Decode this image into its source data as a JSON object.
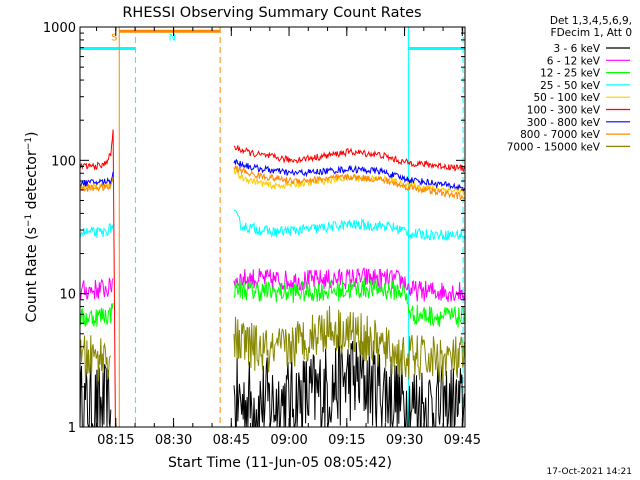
{
  "chart_data": {
    "type": "line",
    "title": "RHESSI Observing Summary Count Rates",
    "xlabel": "Start Time (11-Jun-05 08:05:42)",
    "ylabel": "Count Rate (s⁻¹ detector⁻¹)",
    "yscale": "log",
    "ylim": [
      1,
      1000
    ],
    "xlim_minutes": [
      0,
      100
    ],
    "x_ticks": [
      {
        "label": "08:15",
        "t": 9.3
      },
      {
        "label": "08:30",
        "t": 24.3
      },
      {
        "label": "08:45",
        "t": 39.3
      },
      {
        "label": "09:00",
        "t": 54.3
      },
      {
        "label": "09:15",
        "t": 69.3
      },
      {
        "label": "09:30",
        "t": 84.3
      },
      {
        "label": "09:45",
        "t": 99.3
      }
    ],
    "y_ticks": [
      {
        "label": "1",
        "v": 1
      },
      {
        "label": "10",
        "v": 10
      },
      {
        "label": "100",
        "v": 100
      },
      {
        "label": "1000",
        "v": 1000
      }
    ],
    "legend_header": [
      "Det 1,3,4,5,6,9,",
      "FDecim 1, Att 0"
    ],
    "series": [
      {
        "name": "3 - 6 keV",
        "color": "#000000",
        "noise": 0.35,
        "segments": [
          [
            [
              0,
              1.4
            ],
            [
              8,
              1.35
            ]
          ],
          [
            [
              40,
              1.5
            ],
            [
              55,
              1.55
            ],
            [
              62,
              1.8
            ],
            [
              70,
              2.4
            ],
            [
              78,
              2.0
            ],
            [
              84,
              1.5
            ],
            [
              100,
              1.35
            ]
          ]
        ]
      },
      {
        "name": "6 - 12 keV",
        "color": "#ff00ff",
        "noise": 0.08,
        "segments": [
          [
            [
              0,
              10.5
            ],
            [
              8,
              11
            ],
            [
              8.6,
              13
            ]
          ],
          [
            [
              40,
              12.8
            ],
            [
              45,
              13
            ],
            [
              55,
              12.5
            ],
            [
              65,
              12.8
            ],
            [
              75,
              13.2
            ],
            [
              84,
              12.5
            ],
            [
              86,
              10.5
            ],
            [
              100,
              10.3
            ]
          ]
        ]
      },
      {
        "name": "12 - 25 keV",
        "color": "#00ff00",
        "noise": 0.08,
        "segments": [
          [
            [
              0,
              6.5
            ],
            [
              8,
              7
            ],
            [
              8.6,
              8.5
            ]
          ],
          [
            [
              40,
              11
            ],
            [
              45,
              10.5
            ],
            [
              55,
              10.2
            ],
            [
              65,
              10.5
            ],
            [
              75,
              11
            ],
            [
              84,
              10.5
            ],
            [
              86,
              7
            ],
            [
              100,
              6.6
            ]
          ]
        ]
      },
      {
        "name": "25 - 50 keV",
        "color": "#00ffff",
        "noise": 0.04,
        "segments": [
          [
            [
              0,
              29
            ],
            [
              6,
              28.5
            ],
            [
              8,
              31
            ],
            [
              8.6,
              33
            ]
          ],
          [
            [
              40,
              41
            ],
            [
              42,
              32
            ],
            [
              50,
              29
            ],
            [
              60,
              30.5
            ],
            [
              70,
              33
            ],
            [
              80,
              32
            ],
            [
              84,
              30
            ],
            [
              86,
              28
            ],
            [
              100,
              27.5
            ]
          ]
        ]
      },
      {
        "name": "50 - 100 keV",
        "color": "#ffcc00",
        "noise": 0.025,
        "segments": [
          [
            [
              0,
              62
            ],
            [
              8,
              66
            ],
            [
              8.6,
              72
            ]
          ],
          [
            [
              40,
              84
            ],
            [
              42,
              74
            ],
            [
              50,
              64
            ],
            [
              60,
              68
            ],
            [
              70,
              74
            ],
            [
              80,
              72
            ],
            [
              84,
              66
            ],
            [
              100,
              58
            ]
          ]
        ]
      },
      {
        "name": "100 - 300 keV",
        "color": "#ff0000",
        "noise": 0.025,
        "segments": [
          [
            [
              0,
              90
            ],
            [
              6,
              91
            ],
            [
              8,
              110
            ],
            [
              8.6,
              170
            ]
          ],
          [
            [
              40,
              125
            ],
            [
              45,
              112
            ],
            [
              55,
              100
            ],
            [
              62,
              106
            ],
            [
              70,
              116
            ],
            [
              78,
              110
            ],
            [
              84,
              97
            ],
            [
              100,
              87
            ]
          ]
        ]
      },
      {
        "name": "300 - 800 keV",
        "color": "#0000ff",
        "noise": 0.025,
        "segments": [
          [
            [
              0,
              67
            ],
            [
              8,
              70
            ],
            [
              8.6,
              82
            ]
          ],
          [
            [
              40,
              98
            ],
            [
              45,
              88
            ],
            [
              55,
              80
            ],
            [
              62,
              82
            ],
            [
              70,
              86
            ],
            [
              78,
              83
            ],
            [
              84,
              73
            ],
            [
              100,
              62
            ]
          ]
        ]
      },
      {
        "name": "800 - 7000 keV",
        "color": "#ff8800",
        "noise": 0.025,
        "segments": [
          [
            [
              0,
              61
            ],
            [
              8,
              63
            ],
            [
              8.6,
              75
            ]
          ],
          [
            [
              40,
              88
            ],
            [
              45,
              78
            ],
            [
              55,
              70
            ],
            [
              62,
              72
            ],
            [
              70,
              75
            ],
            [
              78,
              72
            ],
            [
              84,
              64
            ],
            [
              100,
              53
            ]
          ]
        ]
      },
      {
        "name": "7000 - 15000 keV",
        "color": "#888800",
        "noise": 0.18,
        "segments": [
          [
            [
              0,
              3.2
            ],
            [
              8,
              3.4
            ]
          ],
          [
            [
              40,
              4.5
            ],
            [
              50,
              3.5
            ],
            [
              58,
              4.5
            ],
            [
              64,
              5.6
            ],
            [
              72,
              5.0
            ],
            [
              80,
              3.7
            ],
            [
              84,
              3.3
            ],
            [
              100,
              3.2
            ]
          ]
        ]
      }
    ],
    "annotations": [
      {
        "label": "S",
        "color": "#ff8800",
        "t": 8.9,
        "v": 780
      },
      {
        "label": "N",
        "color": "#00ffff",
        "t": 24.0,
        "v": 780
      }
    ]
  },
  "timestamp": "17-Oct-2021 14:21"
}
